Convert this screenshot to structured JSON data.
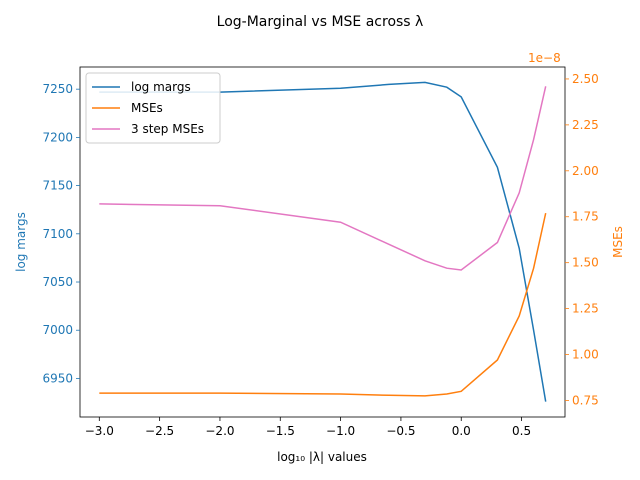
{
  "chart_data": {
    "type": "line",
    "title": "Log-Marginal vs MSE across λ",
    "xlabel": "log₁₀ |λ| values",
    "ylabel_left": "log margs",
    "ylabel_right": "MSEs",
    "right_offset_text": "1e−8",
    "xlim": [
      -3.16,
      0.86
    ],
    "ylim_left": [
      6910,
      2746
    ],
    "ylim_right": [
      0.66,
      2.565
    ],
    "x_ticks": [
      -3.0,
      -2.5,
      -2.0,
      -1.5,
      -1.0,
      -0.5,
      0.0,
      0.5
    ],
    "x_tick_labels": [
      "−3.0",
      "−2.5",
      "−2.0",
      "−1.5",
      "−1.0",
      "−0.5",
      "0.0",
      "0.5"
    ],
    "left_ticks": [
      6950,
      7000,
      7050,
      7100,
      7150,
      7200,
      7250
    ],
    "left_tick_labels": [
      "6950",
      "7000",
      "7050",
      "7100",
      "7150",
      "7200",
      "7250"
    ],
    "right_ticks": [
      0.75,
      1.0,
      1.25,
      1.5,
      1.75,
      2.0,
      2.25,
      2.5
    ],
    "right_tick_labels": [
      "0.75",
      "1.00",
      "1.25",
      "1.50",
      "1.75",
      "2.00",
      "2.25",
      "2.50"
    ],
    "x": [
      -3.0,
      -2.0,
      -1.0,
      -0.6,
      -0.3,
      -0.12,
      0.0,
      0.3,
      0.48,
      0.6,
      0.7
    ],
    "series": [
      {
        "name": "log margs",
        "axis": "left",
        "color": "#1f77b4",
        "values": [
          7247,
          7247,
          7251,
          7255,
          7257,
          7252,
          7242,
          7169,
          7085,
          7000,
          6926
        ]
      },
      {
        "name": "MSEs",
        "axis": "right",
        "color": "#ff7f0e",
        "values": [
          0.79,
          0.79,
          0.785,
          0.778,
          0.775,
          0.785,
          0.8,
          0.97,
          1.21,
          1.47,
          1.77
        ]
      },
      {
        "name": "3 step MSEs",
        "axis": "right",
        "color": "#e377c2",
        "values": [
          1.82,
          1.81,
          1.72,
          1.6,
          1.51,
          1.47,
          1.46,
          1.61,
          1.88,
          2.17,
          2.46
        ]
      }
    ],
    "legend_position": "upper-left",
    "grid": false
  }
}
